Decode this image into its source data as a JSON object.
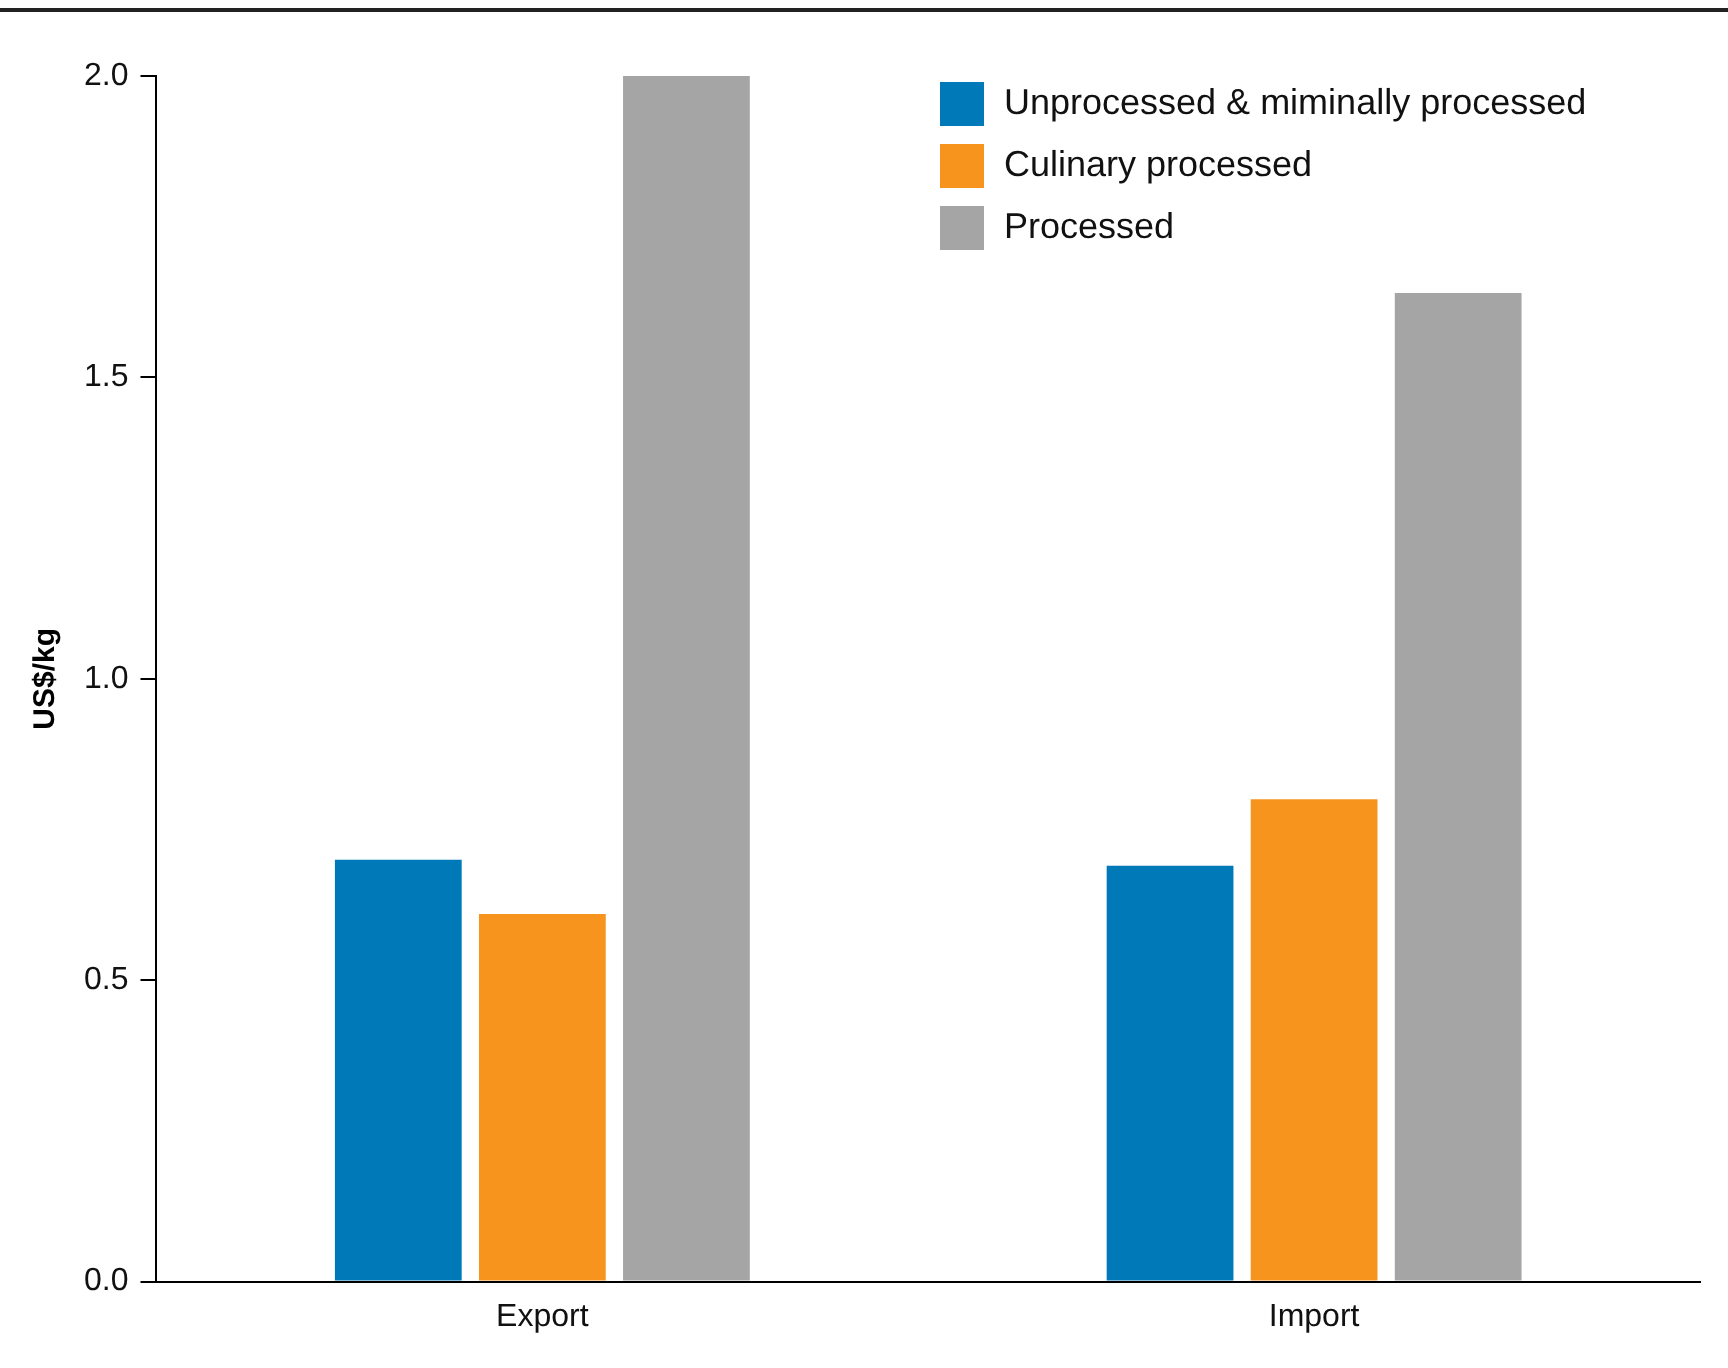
{
  "chart_data": {
    "type": "bar",
    "ylabel": "US$/kg",
    "categories": [
      "Export",
      "Import"
    ],
    "series": [
      {
        "name": "Unprocessed & miminally processed",
        "color": "#0079b8",
        "values": [
          0.7,
          0.69
        ]
      },
      {
        "name": "Culinary processed",
        "color": "#f7941d",
        "values": [
          0.61,
          0.8
        ]
      },
      {
        "name": "Processed",
        "color": "#a5a5a5",
        "values": [
          2.0,
          1.64
        ]
      }
    ],
    "ylim": [
      0,
      2.0
    ],
    "yticks": [
      {
        "value": 0,
        "label": "0.0"
      },
      {
        "value": 0.5,
        "label": "0.5"
      },
      {
        "value": 1,
        "label": "1.0"
      },
      {
        "value": 1.5,
        "label": "1.5"
      },
      {
        "value": 2,
        "label": "2.0"
      }
    ],
    "grid": false,
    "legend": "top right"
  }
}
